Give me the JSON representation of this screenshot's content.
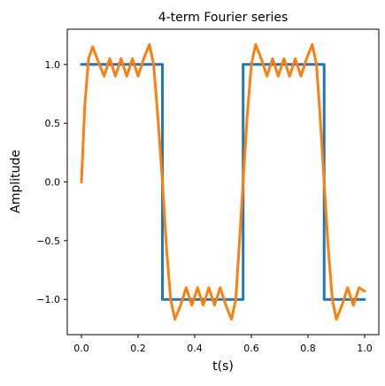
{
  "chart_data": {
    "type": "line",
    "title": "4-term Fourier series",
    "xlabel": "t(s)",
    "ylabel": "Amplitude",
    "xlim": [
      -0.05,
      1.05
    ],
    "ylim": [
      -1.3,
      1.3
    ],
    "xticks": [
      0.0,
      0.2,
      0.4,
      0.6,
      0.8,
      1.0
    ],
    "xtick_labels": [
      "0.0",
      "0.2",
      "0.4",
      "0.6",
      "0.8",
      "1.0"
    ],
    "yticks": [
      -1.0,
      -0.5,
      0.0,
      0.5,
      1.0
    ],
    "ytick_labels": [
      "−1.0",
      "−0.5",
      "0.0",
      "0.5",
      "1.0"
    ],
    "grid": false,
    "legend": false,
    "series": [
      {
        "color": "#1f77b4",
        "x": [
          0.0,
          0.286,
          0.286,
          0.571,
          0.571,
          0.857,
          0.857,
          1.0
        ],
        "y": [
          1.0,
          1.0,
          -1.0,
          -1.0,
          1.0,
          1.0,
          -1.0,
          -1.0
        ]
      },
      {
        "color": "#ff7f0e",
        "x": [
          0.0,
          0.012,
          0.025,
          0.04,
          0.06,
          0.08,
          0.1,
          0.12,
          0.14,
          0.16,
          0.18,
          0.2,
          0.22,
          0.24,
          0.255,
          0.27,
          0.286,
          0.3,
          0.315,
          0.33,
          0.35,
          0.37,
          0.39,
          0.41,
          0.43,
          0.45,
          0.47,
          0.49,
          0.51,
          0.53,
          0.545,
          0.557,
          0.571,
          0.585,
          0.6,
          0.615,
          0.635,
          0.655,
          0.675,
          0.695,
          0.715,
          0.735,
          0.755,
          0.775,
          0.795,
          0.815,
          0.83,
          0.843,
          0.857,
          0.871,
          0.886,
          0.9,
          0.92,
          0.94,
          0.96,
          0.98,
          1.0
        ],
        "y": [
          0.0,
          0.65,
          1.05,
          1.15,
          1.02,
          0.9,
          1.05,
          0.9,
          1.05,
          0.9,
          1.05,
          0.9,
          1.05,
          1.17,
          1.0,
          0.55,
          0.0,
          -0.55,
          -1.0,
          -1.17,
          -1.05,
          -0.9,
          -1.05,
          -0.9,
          -1.05,
          -0.9,
          -1.05,
          -0.9,
          -1.05,
          -1.17,
          -1.0,
          -0.55,
          0.0,
          0.55,
          1.0,
          1.17,
          1.05,
          0.9,
          1.05,
          0.9,
          1.05,
          0.9,
          1.05,
          0.9,
          1.05,
          1.17,
          1.0,
          0.55,
          0.0,
          -0.55,
          -1.0,
          -1.17,
          -1.05,
          -0.9,
          -1.05,
          -0.9,
          -0.93
        ]
      }
    ]
  }
}
